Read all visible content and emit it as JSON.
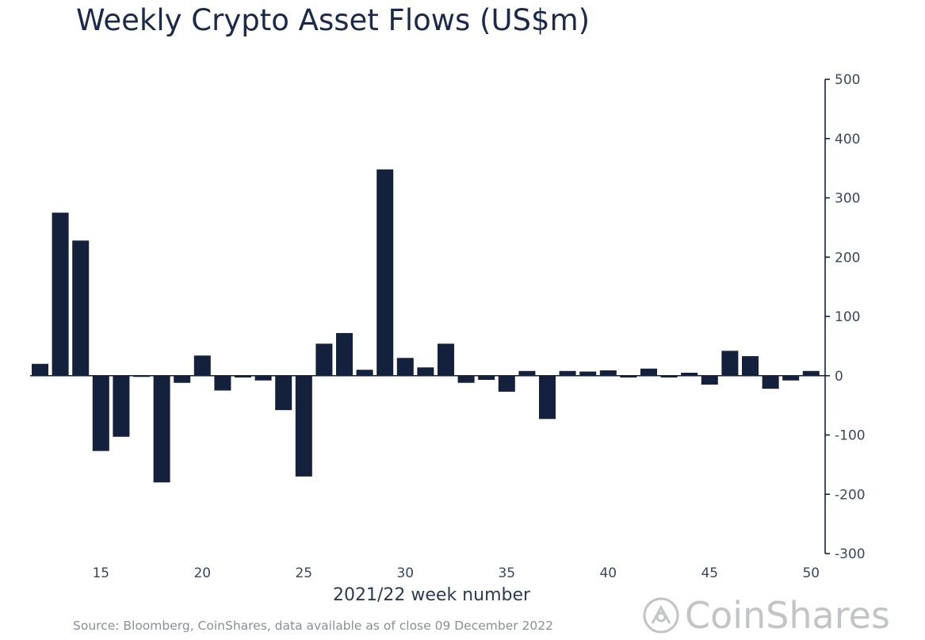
{
  "chart_data": {
    "type": "bar",
    "title": "Weekly Crypto Asset Flows (US$m)",
    "xlabel": "2021/22 week number",
    "ylabel": "",
    "x": [
      12,
      13,
      14,
      15,
      16,
      17,
      18,
      19,
      20,
      21,
      22,
      23,
      24,
      25,
      26,
      27,
      28,
      29,
      30,
      31,
      32,
      33,
      34,
      35,
      36,
      37,
      38,
      39,
      40,
      41,
      42,
      43,
      44,
      45,
      46,
      47,
      48,
      49,
      50
    ],
    "values": [
      20,
      275,
      228,
      -127,
      -103,
      -2,
      -180,
      -12,
      34,
      -25,
      -3,
      -8,
      -58,
      -170,
      54,
      72,
      10,
      348,
      30,
      14,
      54,
      -12,
      -7,
      -27,
      8,
      -73,
      8,
      7,
      9,
      -3,
      12,
      -3,
      5,
      -15,
      42,
      33,
      -22,
      -8,
      8
    ],
    "ylim": [
      -300,
      500
    ],
    "yticks": [
      500,
      400,
      300,
      200,
      100,
      0,
      -100,
      -200,
      -300
    ],
    "xticks": [
      15,
      20,
      25,
      30,
      35,
      40,
      45,
      50
    ],
    "yaxis_position": "right",
    "grid": false,
    "bar_color": "#14213d"
  },
  "footer": {
    "source": "Source: Bloomberg, CoinShares, data available as of close 09 December 2022",
    "brand": "CoinShares",
    "brand_icon": "coinshares-logo-icon"
  }
}
